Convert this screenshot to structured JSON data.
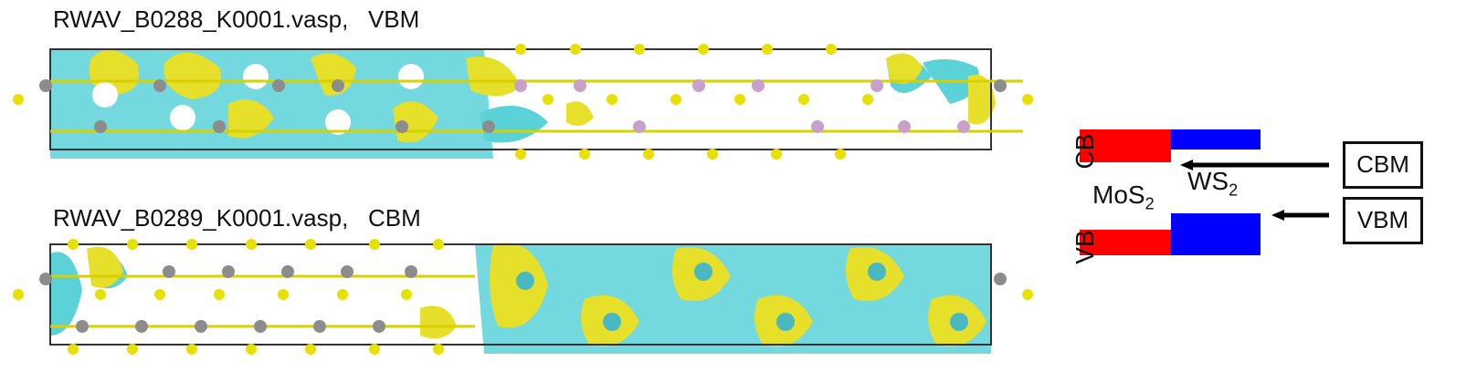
{
  "panels": [
    {
      "title": "RWAV_B0288_K0001.vasp,   VBM"
    },
    {
      "title": "RWAV_B0289_K0001.vasp,   CBM"
    }
  ],
  "diagram": {
    "cb_label": "CB",
    "vb_label": "VB",
    "left_material": "MoS",
    "left_sub": "2",
    "right_material": "WS",
    "right_sub": "2",
    "cbm_label": "CBM",
    "vbm_label": "VBM"
  },
  "colors": {
    "mos2_band": "#ff0000",
    "ws2_band": "#0000ff",
    "isosurface_pos": "#e6e02a",
    "isosurface_neg": "#5ad2d8",
    "sulfur": "#e8e000",
    "tungsten": "#8c8c8c",
    "molybdenum": "#c8a0c8"
  }
}
